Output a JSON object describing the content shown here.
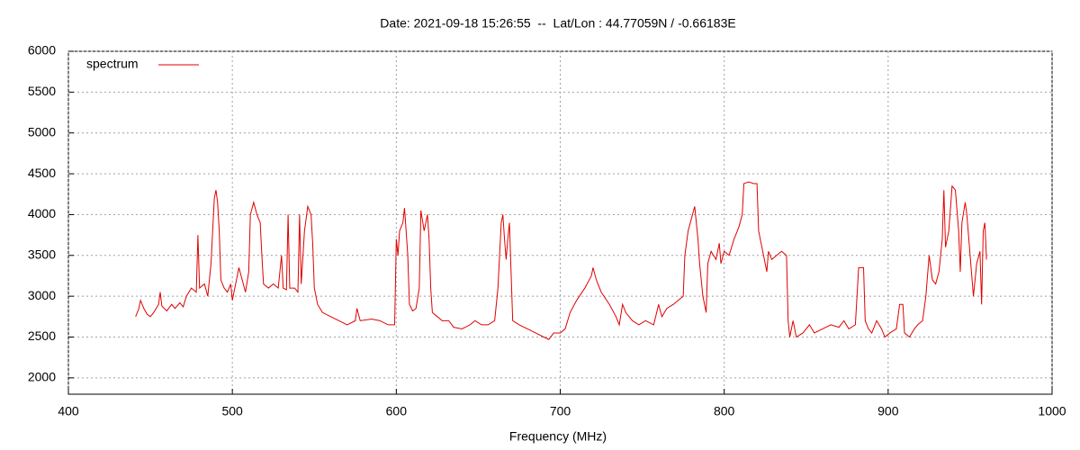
{
  "chart_data": {
    "type": "line",
    "title": "Date: 2021-09-18 15:26:55  --  Lat/Lon : 44.77059N / -0.66183E",
    "x_label": "Frequency (MHz)",
    "xlim": [
      400,
      1000
    ],
    "xticks": [
      400,
      500,
      600,
      700,
      800,
      900,
      1000
    ],
    "ylim": [
      1800,
      6000
    ],
    "yticks": [
      2000,
      2500,
      3000,
      3500,
      4000,
      4500,
      5000,
      5500,
      6000
    ],
    "grid": true,
    "legend": "top-left",
    "x": [
      441,
      443,
      444,
      446,
      448,
      450,
      452,
      455,
      456,
      457,
      460,
      463,
      465,
      468,
      470,
      472,
      475,
      478,
      479,
      480,
      483,
      485,
      487,
      489,
      490,
      491,
      492,
      493,
      495,
      497,
      499,
      500,
      502,
      504,
      506,
      508,
      510,
      511,
      513,
      515,
      517,
      518,
      519,
      522,
      525,
      528,
      530,
      531,
      533,
      534,
      535,
      538,
      540,
      541,
      542,
      544,
      546,
      548,
      549,
      550,
      552,
      555,
      560,
      565,
      570,
      575,
      576,
      578,
      585,
      590,
      595,
      599,
      600,
      601,
      602,
      604,
      605,
      606,
      607,
      608,
      610,
      612,
      614,
      615,
      617,
      619,
      620,
      621,
      622,
      625,
      628,
      632,
      635,
      640,
      645,
      648,
      652,
      656,
      660,
      662,
      664,
      665,
      666,
      667,
      668,
      669,
      670,
      671,
      675,
      680,
      685,
      690,
      693,
      696,
      700,
      703,
      706,
      710,
      715,
      719,
      720,
      722,
      725,
      730,
      734,
      736,
      738,
      740,
      744,
      748,
      752,
      757,
      760,
      762,
      765,
      769,
      775,
      776,
      778,
      780,
      782,
      784,
      785,
      787,
      789,
      790,
      792,
      795,
      797,
      798,
      800,
      803,
      806,
      809,
      811,
      812,
      815,
      818,
      820,
      821,
      823,
      825,
      826,
      827,
      829,
      832,
      835,
      838,
      839,
      840,
      842,
      844,
      848,
      852,
      855,
      860,
      865,
      870,
      873,
      876,
      880,
      882,
      885,
      886,
      888,
      890,
      893,
      896,
      898,
      901,
      905,
      907,
      909,
      910,
      913,
      916,
      918,
      921,
      923,
      925,
      927,
      929,
      931,
      933,
      934,
      935,
      937,
      939,
      941,
      943,
      944,
      945,
      947,
      948,
      950,
      952,
      954,
      956,
      957,
      958,
      959,
      960
    ],
    "series": [
      {
        "name": "spectrum",
        "color": "#e00000",
        "values": [
          2750,
          2850,
          2950,
          2850,
          2780,
          2750,
          2800,
          2900,
          3050,
          2880,
          2820,
          2900,
          2850,
          2920,
          2870,
          3000,
          3100,
          3050,
          3750,
          3100,
          3150,
          3000,
          3400,
          4200,
          4300,
          4150,
          3800,
          3200,
          3100,
          3050,
          3150,
          2950,
          3150,
          3350,
          3200,
          3050,
          3300,
          4000,
          4150,
          4000,
          3900,
          3500,
          3150,
          3100,
          3150,
          3100,
          3500,
          3100,
          3080,
          4000,
          3100,
          3100,
          3050,
          4000,
          3150,
          3800,
          4100,
          4000,
          3650,
          3100,
          2900,
          2800,
          2750,
          2700,
          2650,
          2700,
          2850,
          2700,
          2720,
          2700,
          2650,
          2650,
          3700,
          3500,
          3800,
          3900,
          4080,
          3800,
          3500,
          2900,
          2820,
          2850,
          3100,
          4050,
          3800,
          4000,
          3700,
          3100,
          2800,
          2750,
          2700,
          2700,
          2620,
          2600,
          2650,
          2700,
          2650,
          2650,
          2700,
          3100,
          3900,
          4000,
          3700,
          3450,
          3700,
          3900,
          3300,
          2700,
          2650,
          2600,
          2550,
          2500,
          2470,
          2550,
          2550,
          2600,
          2800,
          2950,
          3100,
          3250,
          3350,
          3200,
          3050,
          2900,
          2750,
          2650,
          2900,
          2800,
          2700,
          2650,
          2700,
          2650,
          2900,
          2750,
          2850,
          2900,
          3000,
          3500,
          3800,
          3950,
          4100,
          3700,
          3400,
          3000,
          2800,
          3400,
          3550,
          3450,
          3650,
          3400,
          3550,
          3500,
          3700,
          3850,
          4000,
          4380,
          4400,
          4380,
          4380,
          3800,
          3600,
          3400,
          3300,
          3550,
          3450,
          3500,
          3550,
          3500,
          2700,
          2500,
          2700,
          2500,
          2550,
          2650,
          2550,
          2600,
          2650,
          2620,
          2700,
          2600,
          2650,
          3350,
          3350,
          2700,
          2600,
          2550,
          2700,
          2600,
          2500,
          2550,
          2600,
          2900,
          2900,
          2550,
          2500,
          2600,
          2650,
          2700,
          3000,
          3500,
          3200,
          3150,
          3300,
          3700,
          4300,
          3600,
          3800,
          4350,
          4300,
          3800,
          3300,
          3900,
          4150,
          4000,
          3500,
          3000,
          3400,
          3550,
          2900,
          3800,
          3900,
          3450
        ]
      }
    ]
  }
}
